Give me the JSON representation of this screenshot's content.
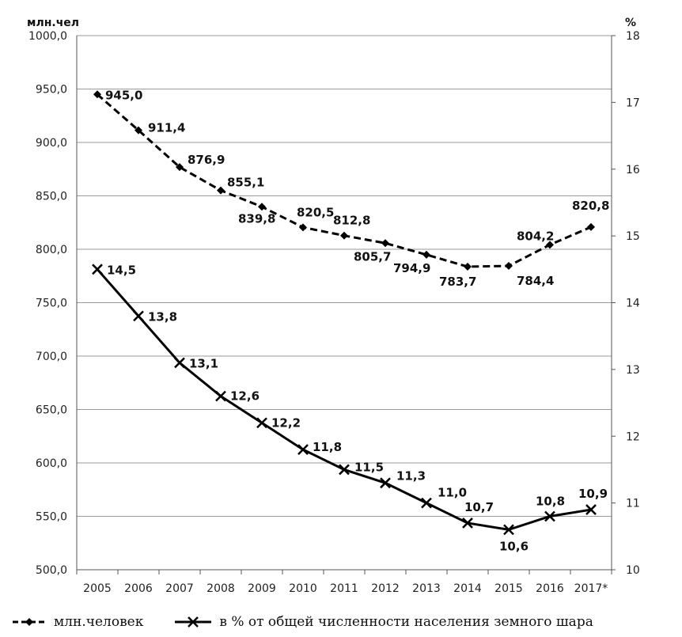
{
  "chart_data": {
    "type": "line",
    "categories": [
      "2005",
      "2006",
      "2007",
      "2008",
      "2009",
      "2010",
      "2011",
      "2012",
      "2013",
      "2014",
      "2015",
      "2016",
      "2017*"
    ],
    "y_left": {
      "unit": "млн.чел",
      "ylim": [
        500,
        1000
      ],
      "ticks": [
        "500,0",
        "550,0",
        "600,0",
        "650,0",
        "700,0",
        "750,0",
        "800,0",
        "850,0",
        "900,0",
        "950,0",
        "1000,0"
      ]
    },
    "y_right": {
      "unit": "%",
      "ylim": [
        10,
        18
      ],
      "ticks": [
        "10",
        "11",
        "12",
        "13",
        "14",
        "15",
        "16",
        "17",
        "18"
      ]
    },
    "grid": "horizontal",
    "legend_position": "bottom",
    "series": [
      {
        "name": "млн.человек",
        "axis": "left",
        "style": "dashed-diamond",
        "values": [
          945.0,
          911.4,
          876.9,
          855.1,
          839.8,
          820.5,
          812.8,
          805.7,
          794.9,
          783.7,
          784.4,
          804.2,
          820.8
        ],
        "labels": [
          "945,0",
          "911,4",
          "876,9",
          "855,1",
          "839,8",
          "820,5",
          "812,8",
          "805,7",
          "794,9",
          "783,7",
          "784,4",
          "804,2",
          "820,8"
        ]
      },
      {
        "name": "в % от общей численности населения земного шара",
        "axis": "right",
        "style": "solid-cross",
        "values": [
          14.5,
          13.8,
          13.1,
          12.6,
          12.2,
          11.8,
          11.5,
          11.3,
          11.0,
          10.7,
          10.6,
          10.8,
          10.9
        ],
        "labels": [
          "14,5",
          "13,8",
          "13,1",
          "12,6",
          "12,2",
          "11,8",
          "11,5",
          "11,3",
          "11,0",
          "10,7",
          "10,6",
          "10,8",
          "10,9"
        ]
      }
    ]
  },
  "legend": {
    "series1_label": "млн.человек",
    "series2_label": "в % от общей численности населения земного шара"
  }
}
